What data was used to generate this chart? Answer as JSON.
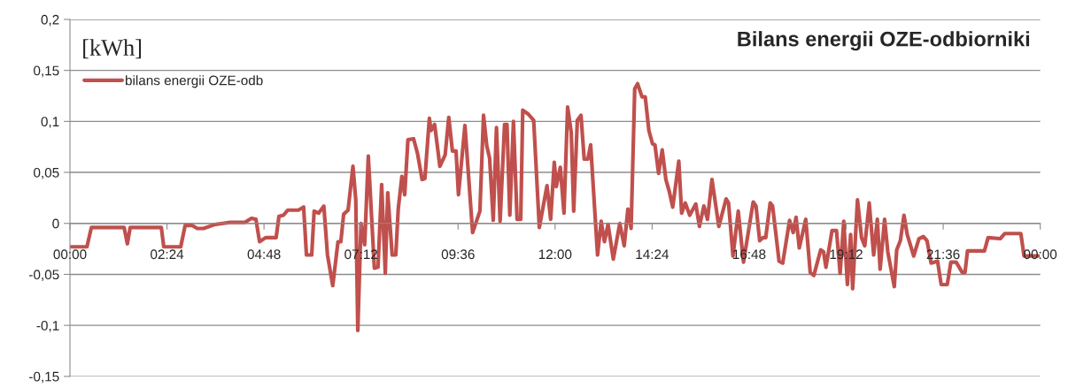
{
  "chart_data": {
    "type": "line",
    "title": "Bilans energii OZE-odbiorniki",
    "ylabel": "[kWh]",
    "x": [
      0,
      0.42,
      0.53,
      1.34,
      1.42,
      1.49,
      2.26,
      2.32,
      2.74,
      2.85,
      3.02,
      3.15,
      3.3,
      3.6,
      3.79,
      3.96,
      4.33,
      4.49,
      4.6,
      4.69,
      4.84,
      5.1,
      5.17,
      5.28,
      5.39,
      5.65,
      5.78,
      5.85,
      5.98,
      6.04,
      6.15,
      6.28,
      6.37,
      6.5,
      6.63,
      6.7,
      6.77,
      6.88,
      7.0,
      7.07,
      7.12,
      7.2,
      7.29,
      7.38,
      7.53,
      7.62,
      7.71,
      7.8,
      7.86,
      7.97,
      8.06,
      8.12,
      8.21,
      8.28,
      8.36,
      8.5,
      8.6,
      8.71,
      8.78,
      8.89,
      8.93,
      9.02,
      9.15,
      9.28,
      9.37,
      9.46,
      9.55,
      9.61,
      9.77,
      9.96,
      10.14,
      10.23,
      10.31,
      10.38,
      10.47,
      10.55,
      10.64,
      10.75,
      10.81,
      10.88,
      10.97,
      11.06,
      11.15,
      11.2,
      11.34,
      11.47,
      11.61,
      11.8,
      11.89,
      11.98,
      12.03,
      12.13,
      12.22,
      12.31,
      12.4,
      12.46,
      12.55,
      12.64,
      12.72,
      12.81,
      12.88,
      13.05,
      13.14,
      13.22,
      13.31,
      13.44,
      13.6,
      13.71,
      13.8,
      13.88,
      13.97,
      14.04,
      14.15,
      14.23,
      14.32,
      14.41,
      14.47,
      14.56,
      14.65,
      14.74,
      14.82,
      14.91,
      15.06,
      15.13,
      15.22,
      15.33,
      15.48,
      15.57,
      15.68,
      15.77,
      15.88,
      16.05,
      16.23,
      16.29,
      16.4,
      16.53,
      16.66,
      16.9,
      16.97,
      17.06,
      17.14,
      17.21,
      17.32,
      17.38,
      17.54,
      17.63,
      17.8,
      17.89,
      17.96,
      18.04,
      18.2,
      18.31,
      18.4,
      18.57,
      18.64,
      18.7,
      18.85,
      18.96,
      19.05,
      19.14,
      19.23,
      19.31,
      19.36,
      19.48,
      19.58,
      19.66,
      19.77,
      19.88,
      19.97,
      20.04,
      20.15,
      20.23,
      20.39,
      20.45,
      20.54,
      20.63,
      20.71,
      20.87,
      21.0,
      21.11,
      21.2,
      21.3,
      21.46,
      21.55,
      21.7,
      21.79,
      21.92,
      22.07,
      22.14,
      22.2,
      22.62,
      22.71,
      23.01,
      23.12,
      23.52,
      23.6,
      23.95
    ],
    "series": [
      {
        "name": "bilans energii OZE-odb",
        "color": "#c0504d",
        "values": [
          -0.023,
          -0.023,
          -0.004,
          -0.004,
          -0.02,
          -0.004,
          -0.004,
          -0.023,
          -0.023,
          -0.002,
          -0.002,
          -0.005,
          -0.005,
          -0.001,
          0,
          0.001,
          0.001,
          0.005,
          0.004,
          -0.018,
          -0.014,
          -0.014,
          0.007,
          0.008,
          0.013,
          0.013,
          0.016,
          -0.031,
          -0.031,
          0.012,
          0.01,
          0.017,
          -0.031,
          -0.061,
          -0.018,
          -0.018,
          0.009,
          0.013,
          0.056,
          0.023,
          -0.105,
          0,
          -0.021,
          0.066,
          -0.044,
          -0.043,
          0.038,
          -0.049,
          0.03,
          -0.031,
          -0.031,
          0.014,
          0.046,
          0.028,
          0.082,
          0.083,
          0.068,
          0.043,
          0.044,
          0.103,
          0.091,
          0.097,
          0.056,
          0.067,
          0.104,
          0.071,
          0.071,
          0.028,
          0.096,
          -0.009,
          0.012,
          0.106,
          0.076,
          0.064,
          0.003,
          0.094,
          0.002,
          0.097,
          0.097,
          0.008,
          0.1,
          0.004,
          0.004,
          0.111,
          0.107,
          0.101,
          -0.004,
          0.037,
          0.004,
          0.06,
          0.036,
          0.055,
          0.01,
          0.114,
          0.089,
          0.012,
          0.101,
          0.106,
          0.063,
          0.063,
          0.077,
          -0.031,
          0.002,
          -0.018,
          -0.001,
          -0.035,
          0,
          -0.022,
          0.014,
          -0.005,
          0.132,
          0.137,
          0.124,
          0.124,
          0.091,
          0.078,
          0.077,
          0.049,
          0.072,
          0.043,
          0.032,
          0.016,
          0.061,
          0.01,
          0.02,
          0.008,
          0.019,
          -0.003,
          0.017,
          0.004,
          0.043,
          -0.003,
          0.024,
          0.02,
          -0.032,
          0.012,
          -0.038,
          0.021,
          0.017,
          -0.017,
          -0.014,
          -0.014,
          0.02,
          0.017,
          -0.037,
          -0.039,
          0.003,
          -0.009,
          0.006,
          -0.024,
          0.004,
          -0.048,
          -0.051,
          -0.026,
          -0.028,
          -0.043,
          -0.007,
          -0.007,
          -0.049,
          0.002,
          -0.06,
          -0.011,
          -0.064,
          0.023,
          -0.014,
          -0.022,
          0.02,
          -0.031,
          0.004,
          -0.045,
          0.004,
          -0.028,
          -0.062,
          -0.026,
          -0.017,
          0.008,
          -0.011,
          -0.032,
          -0.015,
          -0.013,
          -0.017,
          -0.039,
          -0.037,
          -0.06,
          -0.06,
          -0.038,
          -0.038,
          -0.048,
          -0.048,
          -0.027,
          -0.027,
          -0.014,
          -0.015,
          -0.01,
          -0.01,
          -0.032,
          -0.032
        ]
      }
    ],
    "xlim": [
      0,
      24
    ],
    "xticks": [
      {
        "value": 0,
        "label": "00:00"
      },
      {
        "value": 2.4,
        "label": "02:24"
      },
      {
        "value": 4.8,
        "label": "04:48"
      },
      {
        "value": 7.2,
        "label": "07:12"
      },
      {
        "value": 9.6,
        "label": "09:36"
      },
      {
        "value": 12,
        "label": "12:00"
      },
      {
        "value": 14.4,
        "label": "14:24"
      },
      {
        "value": 16.8,
        "label": "16:48"
      },
      {
        "value": 19.2,
        "label": "19:12"
      },
      {
        "value": 21.6,
        "label": "21:36"
      },
      {
        "value": 24,
        "label": "00:00"
      }
    ],
    "ylim": [
      -0.15,
      0.2
    ],
    "yticks": [
      {
        "value": -0.15,
        "label": "-0,15"
      },
      {
        "value": -0.1,
        "label": "-0,1"
      },
      {
        "value": -0.05,
        "label": "-0,05"
      },
      {
        "value": 0,
        "label": "0"
      },
      {
        "value": 0.05,
        "label": "0,05"
      },
      {
        "value": 0.1,
        "label": "0,1"
      },
      {
        "value": 0.15,
        "label": "0,15"
      },
      {
        "value": 0.2,
        "label": "0,2"
      }
    ],
    "grid": "y",
    "legend": "top left",
    "marker": "none",
    "line_style": "solid"
  }
}
